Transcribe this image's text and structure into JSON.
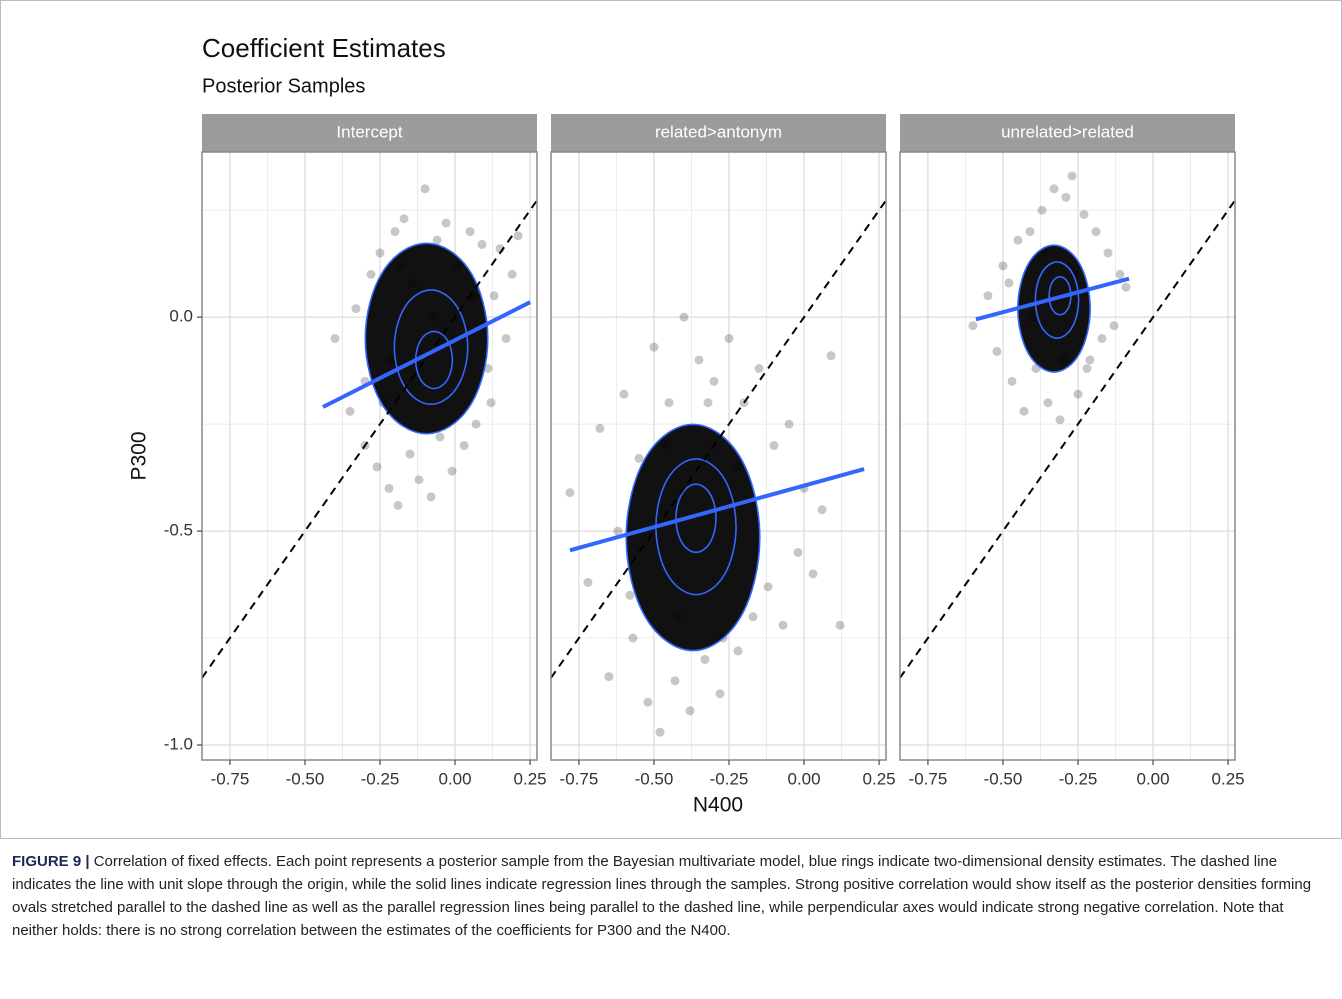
{
  "chart_data": {
    "type": "scatter",
    "title": "Coefficient Estimates",
    "subtitle": "Posterior Samples",
    "xlabel": "N400",
    "ylabel": "P300",
    "xlim": [
      -0.843,
      0.273
    ],
    "ylim": [
      -1.035,
      0.386
    ],
    "xticks": [
      -0.75,
      {
        "value": -0.5,
        "label": "-0.50"
      },
      -0.25,
      {
        "value": 0,
        "label": "0.00"
      },
      0.25
    ],
    "yticks": [
      {
        "value": 0,
        "label": "0.0"
      },
      -0.5,
      {
        "value": -1,
        "label": "-1.0"
      }
    ],
    "xminorticks": [
      -0.625,
      -0.375,
      -0.125,
      0.125
    ],
    "yminorticks": [
      0.25,
      -0.25,
      -0.75
    ],
    "grid": true,
    "point_color": "#000000",
    "line_color": "#3366ff",
    "reference_line": {
      "x": [
        -0.843,
        0.273
      ],
      "y": [
        -0.843,
        0.273
      ]
    },
    "panels": [
      {
        "name": "Intercept",
        "x": [
          -0.4,
          -0.35,
          -0.33,
          -0.3,
          -0.28,
          -0.26,
          -0.25,
          -0.22,
          -0.2,
          -0.19,
          -0.17,
          -0.15,
          -0.14,
          -0.12,
          -0.1,
          -0.08,
          -0.06,
          -0.05,
          -0.03,
          -0.01,
          0.01,
          0.03,
          0.05,
          0.07,
          0.09,
          0.11,
          0.13,
          0.15,
          0.17,
          0.19,
          0.21,
          -0.3,
          -0.24,
          -0.18,
          -0.13,
          -0.07,
          0.0,
          0.06,
          0.12,
          -0.21
        ],
        "y": [
          -0.05,
          -0.22,
          0.02,
          -0.3,
          0.1,
          -0.35,
          0.15,
          -0.4,
          0.2,
          -0.44,
          0.23,
          -0.32,
          0.08,
          -0.38,
          0.3,
          -0.42,
          0.18,
          -0.28,
          0.22,
          -0.36,
          0.12,
          -0.3,
          0.2,
          -0.25,
          0.17,
          -0.12,
          0.05,
          0.16,
          -0.05,
          0.1,
          0.19,
          -0.15,
          -0.2,
          0.12,
          -0.1,
          0.0,
          -0.05,
          0.05,
          -0.2,
          -0.1
        ],
        "regression": {
          "x": [
            -0.44,
            0.25
          ],
          "y": [
            -0.21,
            0.035
          ]
        },
        "contours": [
          {
            "x": [
              0.125,
              0.061,
              -0.095,
              -0.251,
              -0.315,
              -0.251,
              -0.095,
              0.061
            ],
            "y": [
              -0.05,
              0.12,
              0.19,
              0.12,
              -0.05,
              -0.22,
              -0.29,
              -0.22
            ]
          },
          {
            "x": [
              0.052,
              0.013,
              -0.08,
              -0.173,
              -0.212,
              -0.173,
              -0.08,
              0.013
            ],
            "y": [
              -0.07,
              0.032,
              0.074,
              0.032,
              -0.07,
              -0.172,
              -0.214,
              -0.172
            ]
          },
          {
            "x": [
              -0.004,
              -0.023,
              -0.07,
              -0.117,
              -0.136,
              -0.117,
              -0.07,
              -0.023
            ],
            "y": [
              -0.1,
              -0.049,
              -0.028,
              -0.049,
              -0.1,
              -0.151,
              -0.172,
              -0.151
            ]
          }
        ]
      },
      {
        "name": "related>antonym",
        "x": [
          -0.78,
          -0.72,
          -0.68,
          -0.65,
          -0.62,
          -0.6,
          -0.57,
          -0.55,
          -0.52,
          -0.5,
          -0.48,
          -0.45,
          -0.43,
          -0.4,
          -0.38,
          -0.35,
          -0.33,
          -0.3,
          -0.28,
          -0.25,
          -0.22,
          -0.2,
          -0.17,
          -0.15,
          -0.12,
          -0.1,
          -0.07,
          -0.05,
          -0.02,
          0.0,
          0.03,
          0.06,
          0.09,
          0.12,
          -0.58,
          -0.42,
          -0.32,
          -0.22,
          -0.46,
          -0.27
        ],
        "y": [
          -0.41,
          -0.62,
          -0.26,
          -0.84,
          -0.5,
          -0.18,
          -0.75,
          -0.33,
          -0.9,
          -0.07,
          -0.97,
          -0.2,
          -0.85,
          0.0,
          -0.92,
          -0.1,
          -0.8,
          -0.15,
          -0.88,
          -0.05,
          -0.78,
          -0.2,
          -0.7,
          -0.12,
          -0.63,
          -0.3,
          -0.72,
          -0.25,
          -0.55,
          -0.4,
          -0.6,
          -0.45,
          -0.09,
          -0.72,
          -0.65,
          -0.7,
          -0.2,
          -0.35,
          -0.3,
          -0.75
        ],
        "regression": {
          "x": [
            -0.78,
            0.2
          ],
          "y": [
            -0.545,
            -0.355
          ]
        },
        "contours": [
          {
            "x": [
              -0.13,
              -0.2,
              -0.37,
              -0.54,
              -0.61,
              -0.54,
              -0.37,
              -0.2
            ],
            "y": [
              -0.515,
              -0.313,
              -0.23,
              -0.313,
              -0.515,
              -0.717,
              -0.8,
              -0.717
            ]
          },
          {
            "x": [
              -0.216,
              -0.258,
              -0.36,
              -0.462,
              -0.504,
              -0.462,
              -0.36,
              -0.258
            ],
            "y": [
              -0.49,
              -0.369,
              -0.319,
              -0.369,
              -0.49,
              -0.611,
              -0.661,
              -0.611
            ]
          },
          {
            "x": [
              -0.288,
              -0.309,
              -0.36,
              -0.411,
              -0.432,
              -0.411,
              -0.36,
              -0.309
            ],
            "y": [
              -0.47,
              -0.409,
              -0.384,
              -0.409,
              -0.47,
              -0.531,
              -0.556,
              -0.531
            ]
          }
        ]
      },
      {
        "name": "unrelated>related",
        "x": [
          -0.6,
          -0.55,
          -0.52,
          -0.5,
          -0.47,
          -0.45,
          -0.43,
          -0.41,
          -0.39,
          -0.37,
          -0.35,
          -0.33,
          -0.31,
          -0.29,
          -0.27,
          -0.25,
          -0.23,
          -0.21,
          -0.19,
          -0.17,
          -0.15,
          -0.13,
          -0.11,
          -0.09,
          -0.4,
          -0.3,
          -0.26,
          -0.36,
          -0.22,
          -0.48
        ],
        "y": [
          -0.02,
          0.05,
          -0.08,
          0.12,
          -0.15,
          0.18,
          -0.22,
          0.2,
          -0.12,
          0.25,
          -0.2,
          0.3,
          -0.24,
          0.28,
          0.33,
          -0.18,
          0.24,
          -0.1,
          0.2,
          -0.05,
          0.15,
          -0.02,
          0.1,
          0.07,
          0.0,
          -0.1,
          0.1,
          0.15,
          -0.12,
          0.08
        ],
        "regression": {
          "x": [
            -0.59,
            -0.08
          ],
          "y": [
            -0.005,
            0.09
          ]
        },
        "contours": [
          {
            "x": [
              -0.2,
              -0.238,
              -0.33,
              -0.422,
              -0.46,
              -0.422,
              -0.33,
              -0.238
            ],
            "y": [
              0.02,
              0.133,
              0.18,
              0.133,
              0.02,
              -0.093,
              -0.14,
              -0.093
            ]
          },
          {
            "x": [
              -0.242,
              -0.265,
              -0.32,
              -0.375,
              -0.398,
              -0.375,
              -0.32,
              -0.265
            ],
            "y": [
              0.04,
              0.108,
              0.136,
              0.108,
              0.04,
              -0.028,
              -0.056,
              -0.028
            ]
          },
          {
            "x": [
              -0.271,
              -0.282,
              -0.31,
              -0.338,
              -0.349,
              -0.338,
              -0.31,
              -0.282
            ],
            "y": [
              0.05,
              0.084,
              0.098,
              0.084,
              0.05,
              0.016,
              0.002,
              0.016
            ]
          }
        ]
      }
    ]
  },
  "caption": {
    "label": "FIGURE 9 |",
    "text": "Correlation of fixed effects. Each point represents a posterior sample from the Bayesian multivariate model, blue rings indicate two-dimensional density estimates. The dashed line indicates the line with unit slope through the origin, while the solid lines indicate regression lines through the samples. Strong positive correlation would show itself as the posterior densities forming ovals stretched parallel to the dashed line as well as the parallel regression lines being parallel to the dashed line, while perpendicular axes would indicate strong negative correlation. Note that neither holds: there is no strong correlation between the estimates of the coefficients for P300 and the N400."
  }
}
